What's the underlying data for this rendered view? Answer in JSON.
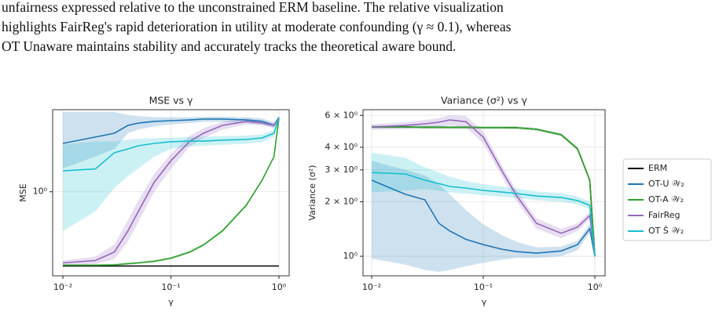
{
  "text": {
    "lines": [
      "unfairness expressed relative to the unconstrained ERM baseline. The relative visualization",
      "highlights FairReg's rapid deterioration in utility at moderate confounding (γ ≈ 0.1), whereas",
      "OT Unaware maintains stability and accurately tracks the theoretical aware bound."
    ]
  },
  "chart_data": [
    {
      "type": "line",
      "title": "MSE vs γ",
      "xlabel": "γ",
      "ylabel": "MSE",
      "xscale": "log",
      "yscale": "log",
      "grid": true,
      "xlim": [
        0.00804,
        1.243
      ],
      "ylim": [
        0.29,
        3.35
      ],
      "xticks": [
        {
          "value": 0.01,
          "label": "10⁻²"
        },
        {
          "value": 0.1,
          "label": "10⁻¹"
        },
        {
          "value": 1,
          "label": "10⁰"
        }
      ],
      "yticks": [
        {
          "value": 1,
          "label": "10⁰"
        }
      ],
      "x": [
        0.01,
        0.02,
        0.03,
        0.04,
        0.05,
        0.07,
        0.1,
        0.15,
        0.2,
        0.3,
        0.5,
        0.7,
        0.9,
        1.0
      ],
      "series": [
        {
          "color": "#000000",
          "values": [
            0.335,
            0.335,
            0.335,
            0.335,
            0.335,
            0.335,
            0.335,
            0.335,
            0.335,
            0.335,
            0.335,
            0.335,
            0.335,
            0.335
          ]
        },
        {
          "color": "#1f77b4",
          "values": [
            2.04,
            2.24,
            2.37,
            2.66,
            2.75,
            2.82,
            2.85,
            2.88,
            2.92,
            2.92,
            2.88,
            2.82,
            2.66,
            2.98
          ],
          "lower": [
            1.41,
            1.68,
            1.88,
            2.37,
            2.5,
            2.62,
            2.7,
            2.75,
            2.8,
            2.8,
            2.75,
            2.7,
            2.55,
            2.9
          ],
          "upper": [
            3.24,
            3.24,
            3.24,
            3.1,
            3.05,
            3.0,
            3.0,
            3.0,
            3.02,
            3.02,
            3.0,
            2.95,
            2.78,
            3.05
          ]
        },
        {
          "color": "#2ca02c",
          "values": [
            0.339,
            0.339,
            0.341,
            0.347,
            0.351,
            0.359,
            0.376,
            0.412,
            0.457,
            0.562,
            0.822,
            1.19,
            1.68,
            2.98
          ],
          "lower": [
            0.333,
            0.333,
            0.335,
            0.341,
            0.345,
            0.352,
            0.369,
            0.404,
            0.448,
            0.551,
            0.806,
            1.17,
            1.65,
            2.93
          ],
          "upper": [
            0.345,
            0.345,
            0.347,
            0.353,
            0.357,
            0.366,
            0.383,
            0.42,
            0.466,
            0.573,
            0.838,
            1.21,
            1.71,
            3.03
          ]
        },
        {
          "color": "#9467bd",
          "values": [
            0.351,
            0.363,
            0.412,
            0.562,
            0.75,
            1.15,
            1.58,
            2.11,
            2.37,
            2.66,
            2.82,
            2.75,
            2.66,
            2.98
          ],
          "lower": [
            0.34,
            0.345,
            0.37,
            0.48,
            0.64,
            1.0,
            1.4,
            1.95,
            2.2,
            2.5,
            2.7,
            2.65,
            2.58,
            2.92
          ],
          "upper": [
            0.362,
            0.385,
            0.46,
            0.66,
            0.88,
            1.3,
            1.75,
            2.28,
            2.55,
            2.8,
            2.95,
            2.86,
            2.75,
            3.04
          ]
        },
        {
          "color": "#17becf",
          "values": [
            1.36,
            1.4,
            1.78,
            1.88,
            1.97,
            2.04,
            2.09,
            2.11,
            2.11,
            2.14,
            2.16,
            2.21,
            2.37,
            2.98
          ],
          "lower": [
            0.562,
            0.75,
            1.06,
            1.26,
            1.41,
            1.68,
            1.88,
            1.95,
            1.97,
            2.0,
            2.03,
            2.08,
            2.25,
            2.9
          ],
          "upper": [
            2.0,
            2.1,
            2.1,
            2.15,
            2.18,
            2.2,
            2.22,
            2.24,
            2.25,
            2.27,
            2.29,
            2.33,
            2.48,
            3.05
          ]
        }
      ]
    },
    {
      "type": "line",
      "title": "Variance (σ²) vs γ",
      "xlabel": "γ",
      "ylabel": "Variance (σ²)",
      "xscale": "log",
      "yscale": "log",
      "grid": true,
      "legend": "outside right",
      "xlim": [
        0.00837,
        1.235
      ],
      "ylim": [
        0.78,
        6.45
      ],
      "xticks": [
        {
          "value": 0.01,
          "label": "10⁻²"
        },
        {
          "value": 0.1,
          "label": "10⁻¹"
        },
        {
          "value": 1,
          "label": "10⁰"
        }
      ],
      "yticks": [
        {
          "value": 1,
          "label": "10⁰"
        },
        {
          "value": 2,
          "label": "2 × 10⁰"
        },
        {
          "value": 3,
          "label": "3 × 10⁰"
        },
        {
          "value": 4,
          "label": "4 × 10⁰"
        },
        {
          "value": 6,
          "label": "6 × 10⁰"
        }
      ],
      "x": [
        0.01,
        0.02,
        0.03,
        0.04,
        0.05,
        0.07,
        0.1,
        0.15,
        0.2,
        0.3,
        0.5,
        0.7,
        0.9,
        1.0
      ],
      "series": [
        {
          "name": "ERM",
          "color": "#000000",
          "values": [
            5.18,
            5.18,
            5.16,
            5.16,
            5.15,
            5.15,
            5.14,
            5.14,
            5.13,
            5.03,
            4.69,
            3.92,
            2.63,
            1.0
          ]
        },
        {
          "name": "OT-U 𝒲₂",
          "color": "#1f77b4",
          "values": [
            2.63,
            2.2,
            2.05,
            1.52,
            1.38,
            1.24,
            1.16,
            1.09,
            1.06,
            1.04,
            1.07,
            1.16,
            1.42,
            1.0
          ],
          "lower": [
            0.97,
            0.9,
            0.84,
            0.82,
            0.84,
            0.88,
            0.92,
            0.96,
            0.98,
            0.98,
            1.0,
            1.08,
            1.35,
            0.96
          ],
          "upper": [
            3.37,
            3.0,
            2.8,
            2.5,
            2.2,
            1.8,
            1.5,
            1.3,
            1.2,
            1.12,
            1.13,
            1.22,
            1.5,
            1.04
          ]
        },
        {
          "name": "OT-A 𝒲₂",
          "color": "#2ca02c",
          "values": [
            5.18,
            5.18,
            5.16,
            5.16,
            5.15,
            5.15,
            5.14,
            5.14,
            5.13,
            5.03,
            4.69,
            3.92,
            2.63,
            1.0
          ],
          "lower": [
            5.08,
            5.08,
            5.06,
            5.06,
            5.05,
            5.05,
            5.04,
            5.04,
            5.03,
            4.93,
            4.6,
            3.84,
            2.58,
            0.98
          ],
          "upper": [
            5.28,
            5.28,
            5.26,
            5.26,
            5.25,
            5.25,
            5.24,
            5.24,
            5.23,
            5.13,
            4.78,
            4.0,
            2.68,
            1.02
          ]
        },
        {
          "name": "FairReg",
          "color": "#9467bd",
          "values": [
            5.18,
            5.28,
            5.39,
            5.5,
            5.66,
            5.54,
            4.55,
            2.9,
            2.15,
            1.52,
            1.34,
            1.45,
            1.68,
            1.0
          ],
          "lower": [
            5.0,
            5.05,
            5.1,
            5.15,
            5.3,
            5.15,
            4.2,
            2.7,
            2.0,
            1.42,
            1.26,
            1.38,
            1.6,
            0.97
          ],
          "upper": [
            5.36,
            5.5,
            5.65,
            5.8,
            6.0,
            5.95,
            4.9,
            3.1,
            2.3,
            1.62,
            1.42,
            1.52,
            1.76,
            1.03
          ]
        },
        {
          "name": "OT Ŝ 𝒲₂",
          "color": "#17becf",
          "values": [
            2.9,
            2.85,
            2.63,
            2.52,
            2.43,
            2.38,
            2.31,
            2.26,
            2.22,
            2.15,
            2.11,
            2.03,
            1.91,
            1.0
          ],
          "lower": [
            2.26,
            2.3,
            2.35,
            2.3,
            2.25,
            2.22,
            2.17,
            2.13,
            2.1,
            2.04,
            2.0,
            1.93,
            1.82,
            0.97
          ],
          "upper": [
            3.73,
            3.5,
            3.1,
            2.9,
            2.76,
            2.6,
            2.5,
            2.42,
            2.36,
            2.28,
            2.23,
            2.14,
            2.0,
            1.03
          ]
        }
      ]
    }
  ]
}
